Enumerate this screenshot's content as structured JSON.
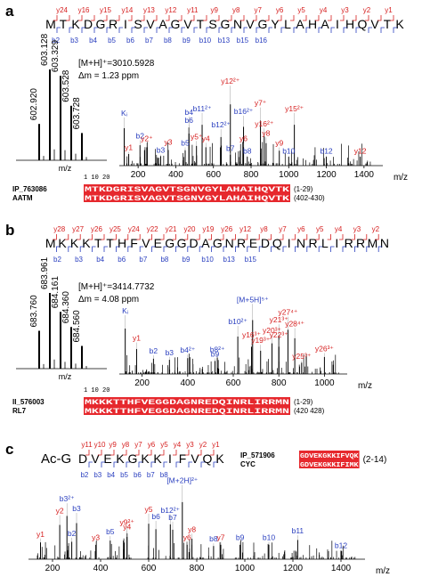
{
  "panels": [
    {
      "letter": "a",
      "sequence": "MTKDGRISVAGVTSGNVGYLAHAIHQVTK",
      "seq_prefix": "",
      "top_ions": [
        "y24",
        "y16",
        "y15",
        "y14",
        "y13",
        "y12",
        "y11",
        "y9",
        "y8",
        "y7",
        "y6",
        "y5",
        "y4",
        "y3",
        "y2",
        "y1"
      ],
      "bottom_ions": [
        "b2",
        "b3",
        "b4",
        "b5",
        "b6",
        "b7",
        "b8",
        "b9",
        "b10",
        "b13",
        "b15",
        "b16"
      ],
      "mh": "[M+H]⁺=3010.5928",
      "dm": "Δm = 1.23 ppm",
      "inset_x_label": "m/z",
      "inset_peaks": [
        {
          "label": "602.920",
          "rel": 0.4
        },
        {
          "label": "603.128",
          "rel": 1.0
        },
        {
          "label": "603.329",
          "rel": 0.93
        },
        {
          "label": "603.528",
          "rel": 0.6
        },
        {
          "label": "603.728",
          "rel": 0.3
        }
      ],
      "spectrum_x_label": "m/z",
      "ticks": [
        "200",
        "400",
        "600",
        "800",
        "1000",
        "1200",
        "1400"
      ],
      "annotations": [
        {
          "text": "y12²⁺",
          "color": "#d62020",
          "mz": 690,
          "h": 0.9
        },
        {
          "text": "y7⁺",
          "color": "#d62020",
          "mz": 850,
          "h": 0.66
        },
        {
          "text": "y15²⁺",
          "color": "#d62020",
          "mz": 1030,
          "h": 0.6
        },
        {
          "text": "Kᵢ",
          "color": "#2a3fbf",
          "mz": 126,
          "h": 0.55
        },
        {
          "text": "b4",
          "color": "#2a3fbf",
          "mz": 470,
          "h": 0.56
        },
        {
          "text": "b11²⁺",
          "color": "#2a3fbf",
          "mz": 540,
          "h": 0.6
        },
        {
          "text": "b16²⁺",
          "color": "#2a3fbf",
          "mz": 760,
          "h": 0.57
        },
        {
          "text": "b6",
          "color": "#2a3fbf",
          "mz": 470,
          "h": 0.47
        },
        {
          "text": "b12²⁺",
          "color": "#2a3fbf",
          "mz": 640,
          "h": 0.42
        },
        {
          "text": "y16²⁺",
          "color": "#d62020",
          "mz": 870,
          "h": 0.43
        },
        {
          "text": "y8",
          "color": "#d62020",
          "mz": 880,
          "h": 0.33
        },
        {
          "text": "b2",
          "color": "#2a3fbf",
          "mz": 210,
          "h": 0.3
        },
        {
          "text": "y2⁺",
          "color": "#d62020",
          "mz": 246,
          "h": 0.27
        },
        {
          "text": "y5⁺",
          "color": "#d62020",
          "mz": 510,
          "h": 0.29
        },
        {
          "text": "y3",
          "color": "#d62020",
          "mz": 360,
          "h": 0.23
        },
        {
          "text": "b5",
          "color": "#2a3fbf",
          "mz": 450,
          "h": 0.22
        },
        {
          "text": "y4",
          "color": "#d62020",
          "mz": 560,
          "h": 0.27
        },
        {
          "text": "y6",
          "color": "#d62020",
          "mz": 760,
          "h": 0.27
        },
        {
          "text": "y9",
          "color": "#d62020",
          "mz": 950,
          "h": 0.22
        },
        {
          "text": "y1",
          "color": "#d62020",
          "mz": 150,
          "h": 0.17
        },
        {
          "text": "b3",
          "color": "#2a3fbf",
          "mz": 320,
          "h": 0.14
        },
        {
          "text": "b7",
          "color": "#2a3fbf",
          "mz": 690,
          "h": 0.16
        },
        {
          "text": "b8",
          "color": "#2a3fbf",
          "mz": 780,
          "h": 0.13
        },
        {
          "text": "b10",
          "color": "#2a3fbf",
          "mz": 1000,
          "h": 0.13
        },
        {
          "text": "b12",
          "color": "#2a3fbf",
          "mz": 1200,
          "h": 0.13
        },
        {
          "text": "y12",
          "color": "#d62020",
          "mz": 1380,
          "h": 0.13
        }
      ],
      "align": {
        "ruler": "1         10        20",
        "rows": [
          {
            "name": "IP_763086",
            "seq": "MTKDGRISVAGVTSGNVGYLAHAIHQVTK",
            "range": "(1-29)"
          },
          {
            "name": "AATM",
            "seq": "MTKDGRISVAGVTSGNVGYLAHAIHQVTK",
            "range": "(402-430)"
          }
        ]
      }
    },
    {
      "letter": "b",
      "sequence": "MKKKTTHFVEGGDAGNREDQINRLIRRMN",
      "seq_prefix": "",
      "top_ions": [
        "y28",
        "y27",
        "y26",
        "y25",
        "y24",
        "y22",
        "y21",
        "y20",
        "y19",
        "y26",
        "y12",
        "y8",
        "y7",
        "y6",
        "y5",
        "y4",
        "y3",
        "y2"
      ],
      "bottom_ions": [
        "b2",
        "b3",
        "b4",
        "b6",
        "b7",
        "b8",
        "b9",
        "b10",
        "b13",
        "b15"
      ],
      "mh": "[M+H]⁺=3414.7732",
      "dm": "Δm = 4.08 ppm",
      "inset_x_label": "m/z",
      "inset_peaks": [
        {
          "label": "683.760",
          "rel": 0.5
        },
        {
          "label": "683.961",
          "rel": 1.0
        },
        {
          "label": "684.161",
          "rel": 0.75
        },
        {
          "label": "684.360",
          "rel": 0.55
        },
        {
          "label": "684.560",
          "rel": 0.3
        }
      ],
      "spectrum_x_label": "m/z",
      "ticks": [
        "200",
        "400",
        "600",
        "800",
        "1000"
      ],
      "annotations": [
        {
          "text": "[M+5H]⁵⁺",
          "color": "#2a3fbf",
          "mz": 685,
          "h": 0.95
        },
        {
          "text": "Kᵢ",
          "color": "#2a3fbf",
          "mz": 126,
          "h": 0.8
        },
        {
          "text": "y27⁴⁺",
          "color": "#d62020",
          "mz": 840,
          "h": 0.78
        },
        {
          "text": "b10²⁺",
          "color": "#2a3fbf",
          "mz": 620,
          "h": 0.66
        },
        {
          "text": "y21³⁺",
          "color": "#d62020",
          "mz": 800,
          "h": 0.68
        },
        {
          "text": "y28⁴⁺",
          "color": "#d62020",
          "mz": 870,
          "h": 0.63
        },
        {
          "text": "y16³⁺",
          "color": "#d62020",
          "mz": 680,
          "h": 0.48
        },
        {
          "text": "y20³⁺",
          "color": "#d62020",
          "mz": 770,
          "h": 0.54
        },
        {
          "text": "y22³⁺",
          "color": "#d62020",
          "mz": 800,
          "h": 0.48
        },
        {
          "text": "y19³⁺",
          "color": "#d62020",
          "mz": 720,
          "h": 0.41
        },
        {
          "text": "y1",
          "color": "#d62020",
          "mz": 176,
          "h": 0.44
        },
        {
          "text": "b2",
          "color": "#2a3fbf",
          "mz": 250,
          "h": 0.27
        },
        {
          "text": "b3",
          "color": "#2a3fbf",
          "mz": 320,
          "h": 0.25
        },
        {
          "text": "b4²⁺",
          "color": "#2a3fbf",
          "mz": 400,
          "h": 0.28
        },
        {
          "text": "b8²⁺",
          "color": "#2a3fbf",
          "mz": 530,
          "h": 0.29
        },
        {
          "text": "b9",
          "color": "#2a3fbf",
          "mz": 520,
          "h": 0.23
        },
        {
          "text": "y25³⁺",
          "color": "#d62020",
          "mz": 900,
          "h": 0.2
        },
        {
          "text": "y26³⁺",
          "color": "#d62020",
          "mz": 1000,
          "h": 0.3
        }
      ],
      "align": {
        "ruler": "1         10        20",
        "rows": [
          {
            "name": "II_576003",
            "seq": "MKKKTTHFVEGGDAGNREDQINRLIRRMN",
            "range": "(1-29)"
          },
          {
            "name": "RL7",
            "seq": "MKKKTTHFVEGGDAGNREDQINRLIRRMN",
            "range": "(420 428)"
          }
        ]
      }
    },
    {
      "letter": "c",
      "sequence": "GDVEKGKKIFVQK",
      "seq_prefix": "Ac-",
      "top_ions": [
        "y11",
        "y10",
        "y9",
        "y8",
        "y7",
        "y6",
        "y5",
        "y4",
        "y3",
        "y2",
        "y1"
      ],
      "bottom_ions": [
        "b2",
        "b3",
        "b4",
        "b5",
        "b6",
        "b7",
        "b8"
      ],
      "spectrum_x_label": "m/z",
      "ticks": [
        "200",
        "400",
        "600",
        "800",
        "1000",
        "1200",
        "1400"
      ],
      "annotations": [
        {
          "text": "[M+2H]²⁺",
          "color": "#2a3fbf",
          "mz": 740,
          "h": 0.95
        },
        {
          "text": "b3²⁺",
          "color": "#2a3fbf",
          "mz": 260,
          "h": 0.72
        },
        {
          "text": "b3",
          "color": "#2a3fbf",
          "mz": 300,
          "h": 0.6
        },
        {
          "text": "y2",
          "color": "#d62020",
          "mz": 230,
          "h": 0.57
        },
        {
          "text": "y5",
          "color": "#d62020",
          "mz": 600,
          "h": 0.59
        },
        {
          "text": "b12²⁺",
          "color": "#2a3fbf",
          "mz": 690,
          "h": 0.58
        },
        {
          "text": "b6",
          "color": "#2a3fbf",
          "mz": 630,
          "h": 0.5
        },
        {
          "text": "b7",
          "color": "#2a3fbf",
          "mz": 700,
          "h": 0.49
        },
        {
          "text": "y9²⁺",
          "color": "#d62020",
          "mz": 510,
          "h": 0.43
        },
        {
          "text": "y4",
          "color": "#d62020",
          "mz": 510,
          "h": 0.37
        },
        {
          "text": "b5",
          "color": "#2a3fbf",
          "mz": 440,
          "h": 0.31
        },
        {
          "text": "y8",
          "color": "#d62020",
          "mz": 780,
          "h": 0.34
        },
        {
          "text": "y1",
          "color": "#d62020",
          "mz": 150,
          "h": 0.28
        },
        {
          "text": "b2",
          "color": "#2a3fbf",
          "mz": 280,
          "h": 0.29
        },
        {
          "text": "y3",
          "color": "#d62020",
          "mz": 380,
          "h": 0.24
        },
        {
          "text": "y6",
          "color": "#d62020",
          "mz": 760,
          "h": 0.24
        },
        {
          "text": "b8",
          "color": "#2a3fbf",
          "mz": 870,
          "h": 0.22
        },
        {
          "text": "y7",
          "color": "#d62020",
          "mz": 900,
          "h": 0.24
        },
        {
          "text": "b9",
          "color": "#2a3fbf",
          "mz": 980,
          "h": 0.24
        },
        {
          "text": "b10",
          "color": "#2a3fbf",
          "mz": 1100,
          "h": 0.24
        },
        {
          "text": "b11",
          "color": "#2a3fbf",
          "mz": 1220,
          "h": 0.32
        },
        {
          "text": "b12",
          "color": "#2a3fbf",
          "mz": 1400,
          "h": 0.14
        }
      ],
      "align": {
        "rows": [
          {
            "name": "IP_571906",
            "seq": "GDVEKGKKIFVQK",
            "range": "(2-14)"
          },
          {
            "name": "CYC",
            "seq": "GDVEKGKKIFIMK",
            "range": ""
          }
        ]
      }
    }
  ],
  "colors": {
    "red": "#d62020",
    "blue": "#2a3fbf",
    "align_bg": "#e6282d"
  }
}
